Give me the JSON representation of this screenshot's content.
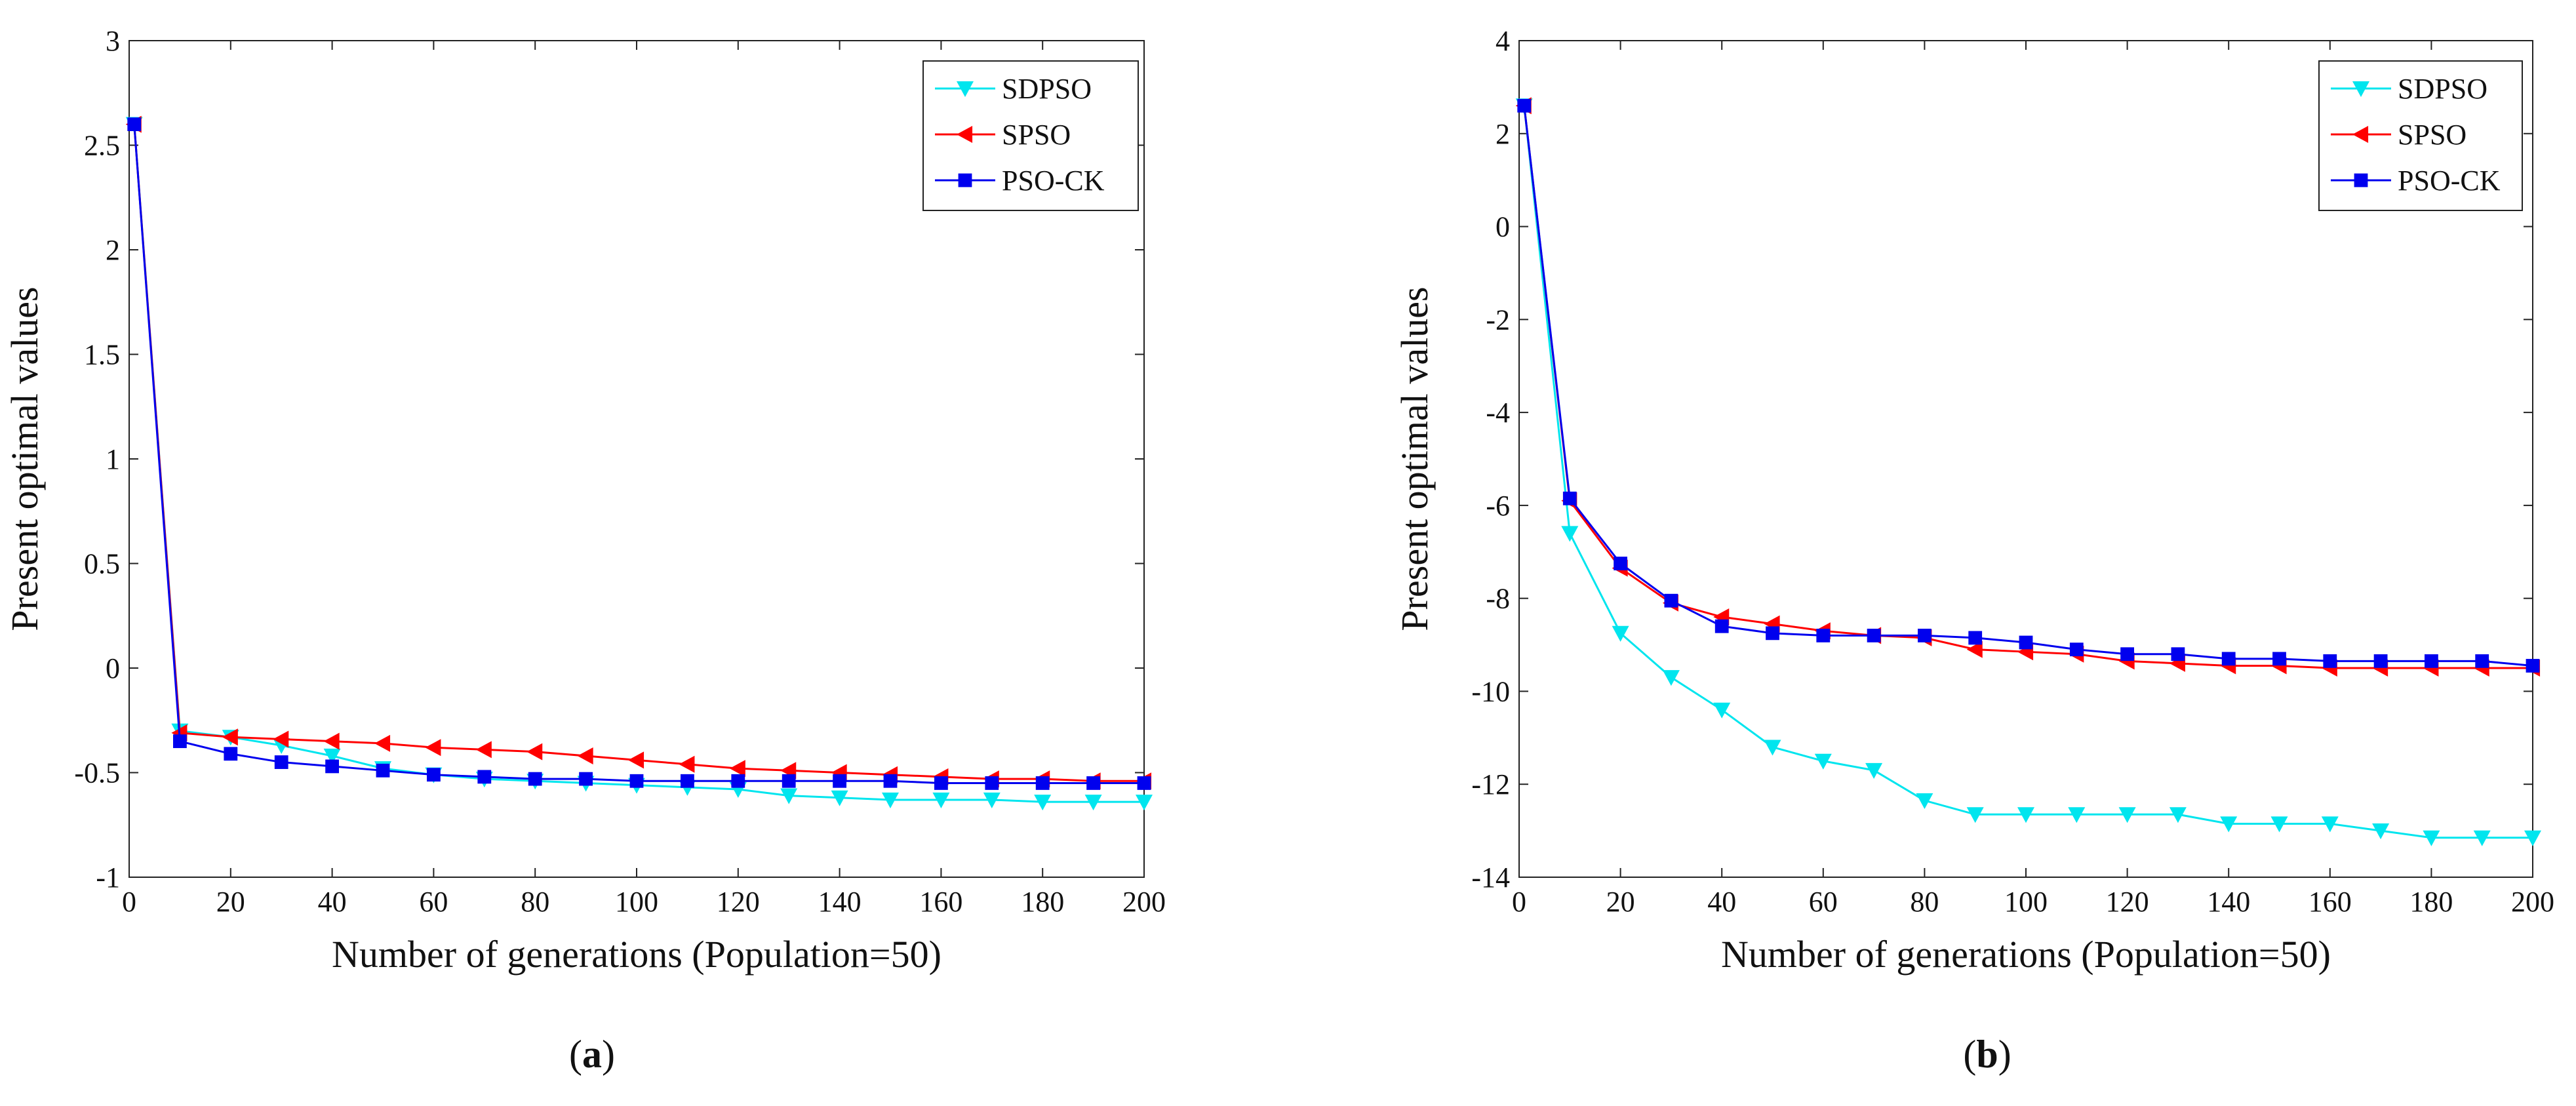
{
  "chart_data": [
    {
      "type": "line",
      "panel_label": "a",
      "xlabel": "Number of generations (Population=50)",
      "ylabel": "Present optimal values",
      "xlim": [
        0,
        200
      ],
      "ylim": [
        -1,
        3
      ],
      "xticks": [
        "0",
        "20",
        "40",
        "60",
        "80",
        "100",
        "120",
        "140",
        "160",
        "180",
        "200"
      ],
      "yticks": [
        "-1",
        "-0.5",
        "0",
        "0.5",
        "1",
        "1.5",
        "2",
        "2.5",
        "3"
      ],
      "legend_position": "top-right",
      "x": [
        1,
        10,
        20,
        30,
        40,
        50,
        60,
        70,
        80,
        90,
        100,
        110,
        120,
        130,
        140,
        150,
        160,
        170,
        180,
        190,
        200
      ],
      "series": [
        {
          "name": "SDPSO",
          "color": "#00e5ee",
          "marker": "triangle-down",
          "values": [
            2.6,
            -0.3,
            -0.33,
            -0.37,
            -0.42,
            -0.48,
            -0.51,
            -0.53,
            -0.54,
            -0.55,
            -0.56,
            -0.57,
            -0.58,
            -0.61,
            -0.62,
            -0.63,
            -0.63,
            -0.63,
            -0.64,
            -0.64,
            -0.64
          ]
        },
        {
          "name": "SPSO",
          "color": "#ff0000",
          "marker": "triangle-left",
          "values": [
            2.6,
            -0.31,
            -0.33,
            -0.34,
            -0.35,
            -0.36,
            -0.38,
            -0.39,
            -0.4,
            -0.42,
            -0.44,
            -0.46,
            -0.48,
            -0.49,
            -0.5,
            -0.51,
            -0.52,
            -0.53,
            -0.53,
            -0.54,
            -0.54
          ]
        },
        {
          "name": "PSO-CK",
          "color": "#0000ee",
          "marker": "square",
          "values": [
            2.6,
            -0.35,
            -0.41,
            -0.45,
            -0.47,
            -0.49,
            -0.51,
            -0.52,
            -0.53,
            -0.53,
            -0.54,
            -0.54,
            -0.54,
            -0.54,
            -0.54,
            -0.54,
            -0.55,
            -0.55,
            -0.55,
            -0.55,
            -0.55
          ]
        }
      ]
    },
    {
      "type": "line",
      "panel_label": "b",
      "xlabel": "Number of generations (Population=50)",
      "ylabel": "Present optimal values",
      "xlim": [
        0,
        200
      ],
      "ylim": [
        -14,
        4
      ],
      "xticks": [
        "0",
        "20",
        "40",
        "60",
        "80",
        "100",
        "120",
        "140",
        "160",
        "180",
        "200"
      ],
      "yticks": [
        "-14",
        "-12",
        "-10",
        "-8",
        "-6",
        "-4",
        "-2",
        "0",
        "2",
        "4"
      ],
      "legend_position": "top-right",
      "x": [
        1,
        10,
        20,
        30,
        40,
        50,
        60,
        70,
        80,
        90,
        100,
        110,
        120,
        130,
        140,
        150,
        160,
        170,
        180,
        190,
        200
      ],
      "series": [
        {
          "name": "SDPSO",
          "color": "#00e5ee",
          "marker": "triangle-down",
          "values": [
            2.6,
            -6.6,
            -8.75,
            -9.7,
            -10.4,
            -11.2,
            -11.5,
            -11.7,
            -12.35,
            -12.65,
            -12.65,
            -12.65,
            -12.65,
            -12.65,
            -12.85,
            -12.85,
            -12.85,
            -13.0,
            -13.15,
            -13.15,
            -13.15
          ]
        },
        {
          "name": "SPSO",
          "color": "#ff0000",
          "marker": "triangle-left",
          "values": [
            2.6,
            -5.9,
            -7.35,
            -8.1,
            -8.4,
            -8.55,
            -8.7,
            -8.8,
            -8.85,
            -9.1,
            -9.15,
            -9.2,
            -9.35,
            -9.4,
            -9.45,
            -9.45,
            -9.5,
            -9.5,
            -9.5,
            -9.5,
            -9.5
          ]
        },
        {
          "name": "PSO-CK",
          "color": "#0000ee",
          "marker": "square",
          "values": [
            2.6,
            -5.85,
            -7.25,
            -8.05,
            -8.6,
            -8.75,
            -8.8,
            -8.8,
            -8.8,
            -8.85,
            -8.95,
            -9.1,
            -9.2,
            -9.2,
            -9.3,
            -9.3,
            -9.35,
            -9.35,
            -9.35,
            -9.35,
            -9.45
          ]
        }
      ]
    }
  ]
}
